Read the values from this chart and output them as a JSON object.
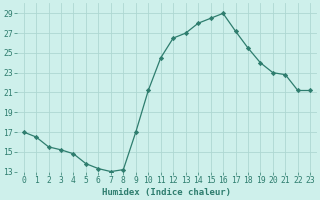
{
  "x": [
    0,
    1,
    2,
    3,
    4,
    5,
    6,
    7,
    8,
    9,
    10,
    11,
    12,
    13,
    14,
    15,
    16,
    17,
    18,
    19,
    20,
    21,
    22,
    23
  ],
  "y": [
    17.0,
    16.5,
    15.5,
    15.2,
    14.8,
    13.8,
    13.3,
    13.0,
    13.2,
    17.0,
    21.2,
    24.5,
    26.5,
    27.0,
    28.0,
    28.5,
    29.0,
    27.2,
    25.5,
    24.0,
    23.0,
    22.8,
    21.2,
    21.2
  ],
  "line_color": "#2e7d6e",
  "marker": "D",
  "marker_size": 2.2,
  "bg_color": "#cef0eb",
  "grid_color": "#aed8d2",
  "xlabel": "Humidex (Indice chaleur)",
  "ylim": [
    13,
    30
  ],
  "yticks": [
    13,
    15,
    17,
    19,
    21,
    23,
    25,
    27,
    29
  ],
  "xticks": [
    0,
    1,
    2,
    3,
    4,
    5,
    6,
    7,
    8,
    9,
    10,
    11,
    12,
    13,
    14,
    15,
    16,
    17,
    18,
    19,
    20,
    21,
    22,
    23
  ],
  "xlabel_fontsize": 6.5,
  "tick_fontsize": 5.8,
  "linewidth": 0.9
}
